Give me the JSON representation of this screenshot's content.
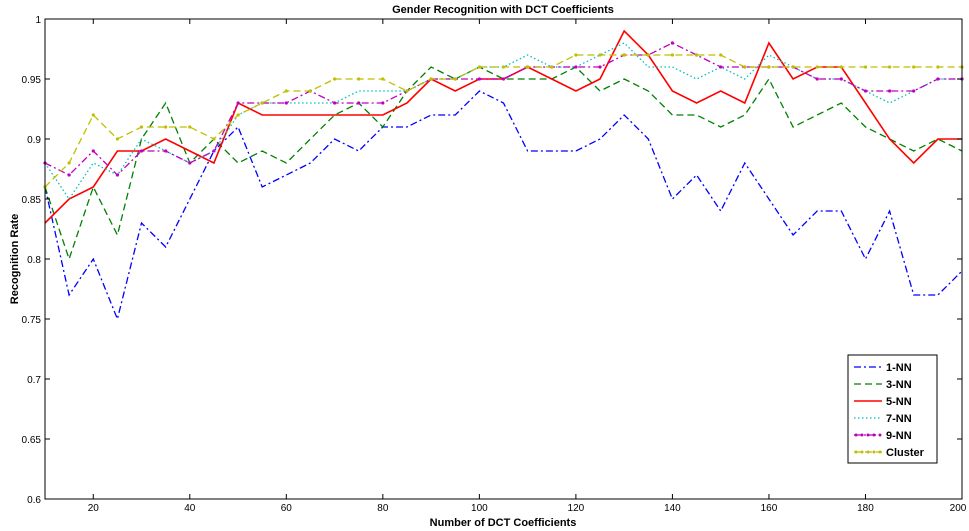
{
  "chart_data": {
    "type": "line",
    "title": "Gender Recognition with DCT Coefficients",
    "xlabel": "Number of DCT Coefficients",
    "ylabel": "Recognition Rate",
    "xlim": [
      10,
      200
    ],
    "ylim": [
      0.6,
      1.0
    ],
    "xticks": [
      20,
      40,
      60,
      80,
      100,
      120,
      140,
      160,
      180,
      200
    ],
    "yticks": [
      0.6,
      0.65,
      0.7,
      0.75,
      0.8,
      0.85,
      0.9,
      0.95,
      1.0
    ],
    "ytick_labels": [
      "0.6",
      "0.65",
      "0.7",
      "0.75",
      "0.8",
      "0.85",
      "0.9",
      "0.95",
      "1"
    ],
    "grid": false,
    "legend_position": "bottom-right",
    "x": [
      10,
      15,
      20,
      25,
      30,
      35,
      40,
      45,
      50,
      55,
      60,
      65,
      70,
      75,
      80,
      85,
      90,
      95,
      100,
      105,
      110,
      115,
      120,
      125,
      130,
      135,
      140,
      145,
      150,
      155,
      160,
      165,
      170,
      175,
      180,
      185,
      190,
      195,
      200
    ],
    "series": [
      {
        "name": "1-NN",
        "color": "#0000ff",
        "dash": "dashdot",
        "marker": "none",
        "values": [
          0.86,
          0.77,
          0.8,
          0.75,
          0.83,
          0.81,
          0.85,
          0.89,
          0.91,
          0.86,
          0.87,
          0.88,
          0.9,
          0.89,
          0.91,
          0.91,
          0.92,
          0.92,
          0.94,
          0.93,
          0.89,
          0.89,
          0.89,
          0.9,
          0.92,
          0.9,
          0.85,
          0.87,
          0.84,
          0.88,
          0.85,
          0.82,
          0.84,
          0.84,
          0.8,
          0.84,
          0.77,
          0.77,
          0.79
        ]
      },
      {
        "name": "3-NN",
        "color": "#008000",
        "dash": "dash",
        "marker": "none",
        "values": [
          0.86,
          0.8,
          0.86,
          0.82,
          0.9,
          0.93,
          0.88,
          0.9,
          0.88,
          0.89,
          0.88,
          0.9,
          0.92,
          0.93,
          0.91,
          0.94,
          0.96,
          0.95,
          0.96,
          0.95,
          0.95,
          0.95,
          0.96,
          0.94,
          0.95,
          0.94,
          0.92,
          0.92,
          0.91,
          0.92,
          0.95,
          0.91,
          0.92,
          0.93,
          0.91,
          0.9,
          0.89,
          0.9,
          0.89
        ]
      },
      {
        "name": "5-NN",
        "color": "#ff0000",
        "dash": "solid",
        "marker": "none",
        "values": [
          0.83,
          0.85,
          0.86,
          0.89,
          0.89,
          0.9,
          0.89,
          0.88,
          0.93,
          0.92,
          0.92,
          0.92,
          0.92,
          0.92,
          0.92,
          0.93,
          0.95,
          0.94,
          0.95,
          0.95,
          0.96,
          0.95,
          0.94,
          0.95,
          0.99,
          0.97,
          0.94,
          0.93,
          0.94,
          0.93,
          0.98,
          0.95,
          0.96,
          0.96,
          0.93,
          0.9,
          0.88,
          0.9,
          0.9
        ]
      },
      {
        "name": "7-NN",
        "color": "#00bfbf",
        "dash": "dotted",
        "marker": "none",
        "values": [
          0.88,
          0.85,
          0.88,
          0.87,
          0.9,
          0.89,
          0.88,
          0.89,
          0.92,
          0.93,
          0.93,
          0.93,
          0.93,
          0.94,
          0.94,
          0.94,
          0.95,
          0.95,
          0.96,
          0.96,
          0.97,
          0.96,
          0.96,
          0.97,
          0.98,
          0.96,
          0.96,
          0.95,
          0.96,
          0.95,
          0.97,
          0.96,
          0.95,
          0.95,
          0.94,
          0.93,
          0.94,
          0.95,
          0.95
        ]
      },
      {
        "name": "9-NN",
        "color": "#bf00bf",
        "dash": "dashdot",
        "marker": "dot",
        "values": [
          0.88,
          0.87,
          0.89,
          0.87,
          0.89,
          0.89,
          0.88,
          0.89,
          0.93,
          0.93,
          0.93,
          0.94,
          0.93,
          0.93,
          0.93,
          0.94,
          0.95,
          0.95,
          0.95,
          0.95,
          0.96,
          0.96,
          0.96,
          0.96,
          0.97,
          0.97,
          0.98,
          0.97,
          0.96,
          0.96,
          0.96,
          0.96,
          0.95,
          0.95,
          0.94,
          0.94,
          0.94,
          0.95,
          0.95
        ]
      },
      {
        "name": "Cluster",
        "color": "#bfbf00",
        "dash": "dash",
        "marker": "dot",
        "values": [
          0.86,
          0.88,
          0.92,
          0.9,
          0.91,
          0.91,
          0.91,
          0.9,
          0.92,
          0.93,
          0.94,
          0.94,
          0.95,
          0.95,
          0.95,
          0.94,
          0.95,
          0.95,
          0.96,
          0.96,
          0.96,
          0.96,
          0.97,
          0.97,
          0.97,
          0.97,
          0.97,
          0.97,
          0.97,
          0.96,
          0.96,
          0.96,
          0.96,
          0.96,
          0.96,
          0.96,
          0.96,
          0.96,
          0.96
        ]
      }
    ]
  }
}
